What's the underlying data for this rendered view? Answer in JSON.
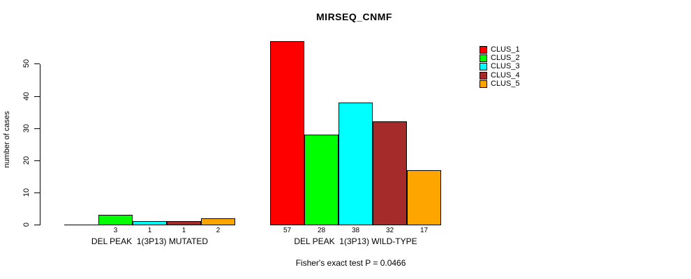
{
  "chart_data": {
    "type": "bar",
    "title": "MIRSEQ_CNMF",
    "ylabel": "number of cases",
    "xlabel": "",
    "ylim": [
      0,
      58
    ],
    "yticks": [
      0,
      10,
      20,
      30,
      40,
      50
    ],
    "grid": false,
    "legend_position": "top-right",
    "categories": [
      "DEL PEAK  1(3P13) MUTATED",
      "DEL PEAK  1(3P13) WILD-TYPE"
    ],
    "series": [
      {
        "name": "CLUS_1",
        "color": "#FF0000",
        "values": [
          0,
          57
        ]
      },
      {
        "name": "CLUS_2",
        "color": "#00FF00",
        "values": [
          3,
          28
        ]
      },
      {
        "name": "CLUS_3",
        "color": "#00FFFF",
        "values": [
          1,
          38
        ]
      },
      {
        "name": "CLUS_4",
        "color": "#A52A2A",
        "values": [
          1,
          32
        ]
      },
      {
        "name": "CLUS_5",
        "color": "#FFA500",
        "values": [
          2,
          17
        ]
      }
    ],
    "bar_value_labels": [
      [
        "",
        "3",
        "1",
        "1",
        "2"
      ],
      [
        "57",
        "28",
        "38",
        "32",
        "17"
      ]
    ],
    "annotation": "Fisher's exact test P = 0.0466",
    "axis_color": "#000000",
    "background_color": "#FFFFFF"
  }
}
